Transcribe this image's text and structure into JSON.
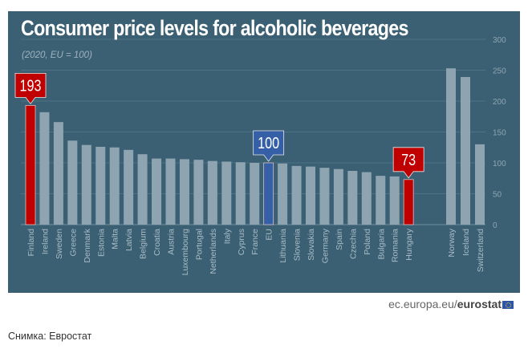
{
  "chart_data": {
    "type": "bar",
    "title": "Consumer price levels for alcoholic beverages",
    "subtitle": "(2020, EU = 100)",
    "xlabel": "",
    "ylabel": "",
    "ylim": [
      0,
      300
    ],
    "yticks": [
      0,
      50,
      100,
      150,
      200,
      250,
      300
    ],
    "grid": true,
    "categories": [
      "Finland",
      "Ireland",
      "Sweden",
      "Greece",
      "Denmark",
      "Estonia",
      "Malta",
      "Latvia",
      "Belgium",
      "Croatia",
      "Austria",
      "Luxembourg",
      "Portugal",
      "Netherlands",
      "Italy",
      "Cyprus",
      "France",
      "EU",
      "Lithuania",
      "Slovenia",
      "Slovakia",
      "Germany",
      "Spain",
      "Czechia",
      "Poland",
      "Bulgaria",
      "Romania",
      "Hungary",
      "Norway",
      "Iceland",
      "Switzerland"
    ],
    "values": [
      193,
      182,
      166,
      136,
      129,
      126,
      125,
      121,
      114,
      107,
      107,
      106,
      105,
      103,
      102,
      101,
      100,
      100,
      99,
      95,
      94,
      92,
      90,
      87,
      85,
      79,
      78,
      73,
      253,
      239,
      130
    ],
    "highlights": {
      "Finland": "#c00000",
      "EU": "#3560a8",
      "Hungary": "#c00000"
    },
    "annotations": [
      {
        "category": "Finland",
        "label": "193"
      },
      {
        "category": "EU",
        "label": "100"
      },
      {
        "category": "Hungary",
        "label": "73"
      }
    ],
    "colors": {
      "default_bar": "#8ea5b1",
      "panel": "#3b6073",
      "grid": "#4d7185",
      "tick_text": "#8ea5b1"
    }
  },
  "footer": {
    "source_prefix": "ec.europa.eu/",
    "source_brand": "eurostat",
    "caption": "Снимка: Евростат"
  }
}
